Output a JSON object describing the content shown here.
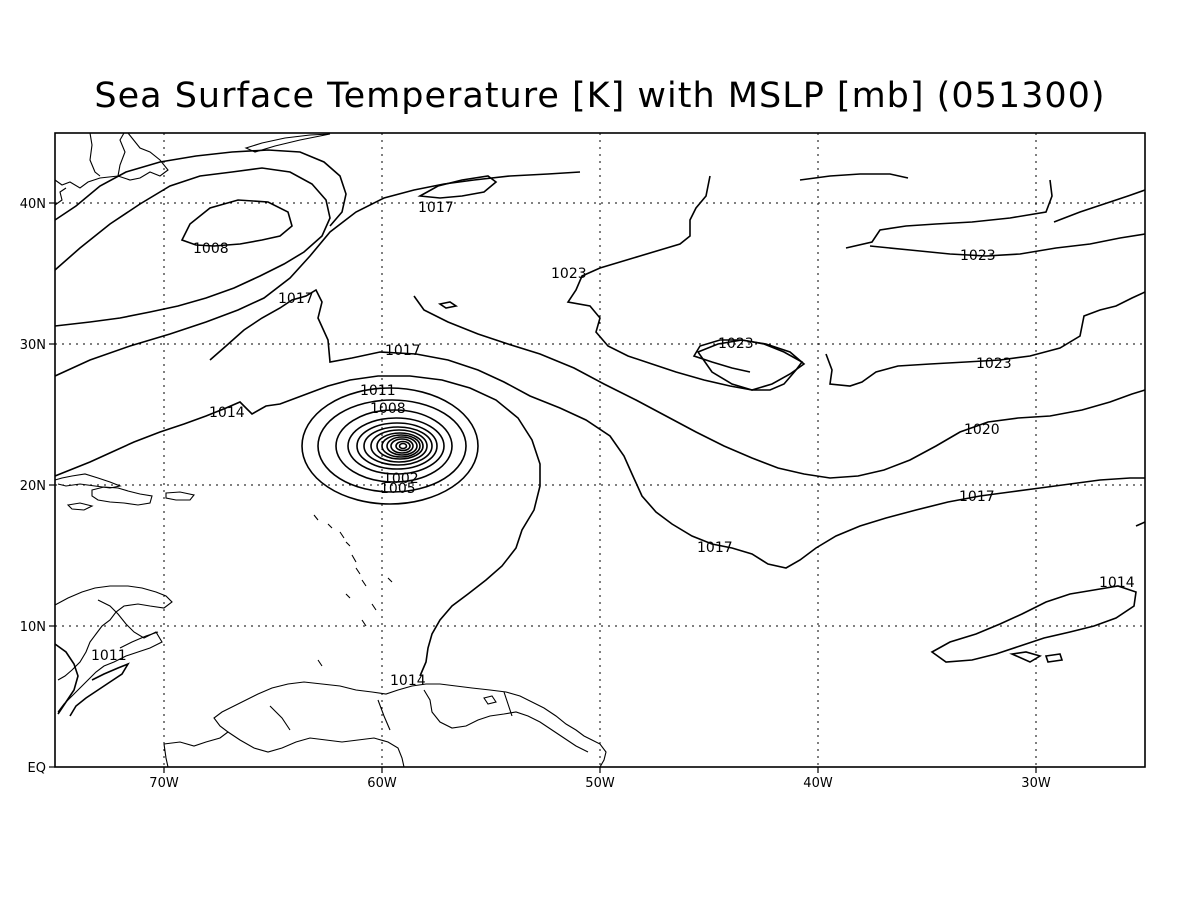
{
  "map": {
    "title": "Sea Surface Temperature [K] with MSLP [mb] (051300)",
    "lon_ticks": [
      "70W",
      "60W",
      "50W",
      "40W",
      "30W"
    ],
    "lat_ticks": [
      "40N",
      "30N",
      "20N",
      "10N",
      "EQ"
    ],
    "grid": "dotted",
    "contour_labels": [
      {
        "text": "1017",
        "lon": -58.5,
        "lat": 39.9
      },
      {
        "text": "1008",
        "lon": -67.7,
        "lat": 37.2
      },
      {
        "text": "1023",
        "lon": -49.5,
        "lat": 35.1
      },
      {
        "text": "1023",
        "lon": -34.8,
        "lat": 36.0
      },
      {
        "text": "1017",
        "lon": -63.9,
        "lat": 32.2
      },
      {
        "text": "1017",
        "lon": -57.9,
        "lat": 28.6
      },
      {
        "text": "1023",
        "lon": -42.6,
        "lat": 30.0
      },
      {
        "text": "1023",
        "lon": -30.8,
        "lat": 28.4
      },
      {
        "text": "1011",
        "lon": -59.9,
        "lat": 26.6
      },
      {
        "text": "1008",
        "lon": -59.6,
        "lat": 25.3
      },
      {
        "text": "1014",
        "lon": -67.8,
        "lat": 25.3
      },
      {
        "text": "1020",
        "lon": -33.1,
        "lat": 24.0
      },
      {
        "text": "1002",
        "lon": -58.9,
        "lat": 20.5
      },
      {
        "text": "1005",
        "lon": -59.6,
        "lat": 19.8
      },
      {
        "text": "1017",
        "lon": -33.6,
        "lat": 20.8
      },
      {
        "text": "1017",
        "lon": -43.9,
        "lat": 15.5
      },
      {
        "text": "1014",
        "lon": -26.9,
        "lat": 13.2
      },
      {
        "text": "1011",
        "lon": -71.7,
        "lat": 8.2
      },
      {
        "text": "1014",
        "lon": -57.6,
        "lat": 6.2
      }
    ]
  }
}
